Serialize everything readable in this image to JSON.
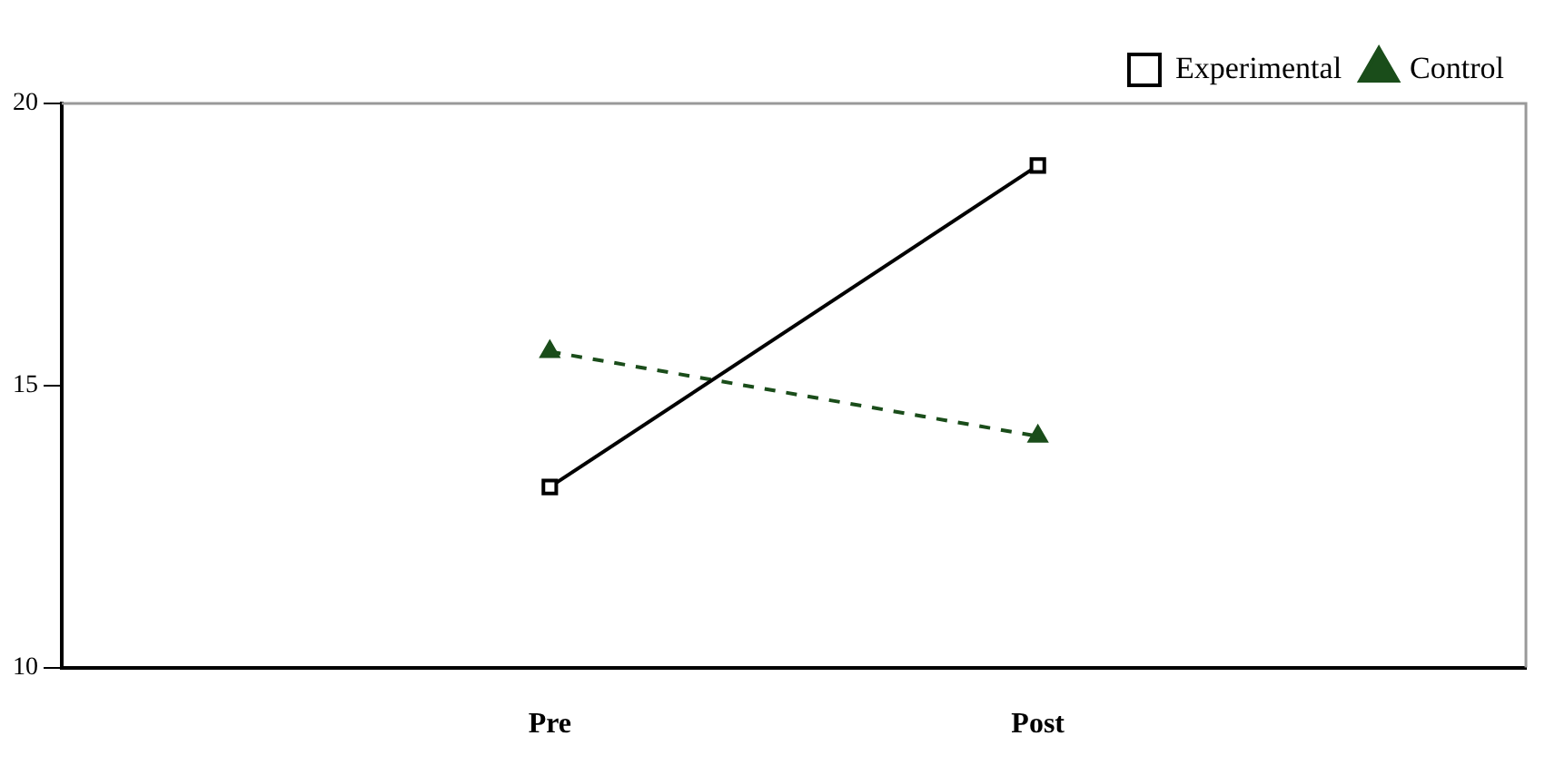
{
  "chart_data": {
    "type": "line",
    "categories": [
      null,
      "Pre",
      "Post",
      null
    ],
    "series": [
      {
        "name": "Experimental",
        "color": "#000000",
        "values": [
          null,
          13.2,
          18.9,
          null
        ],
        "marker": "square",
        "line_style": "solid"
      },
      {
        "name": "Control",
        "color": "#1a4d1a",
        "values": [
          null,
          15.6,
          14.1,
          null
        ],
        "marker": "triangle",
        "line_style": "dashed"
      }
    ],
    "ylim": [
      10,
      20
    ],
    "yticks": [
      10,
      15,
      20
    ],
    "grid": false,
    "legend": "top right"
  }
}
